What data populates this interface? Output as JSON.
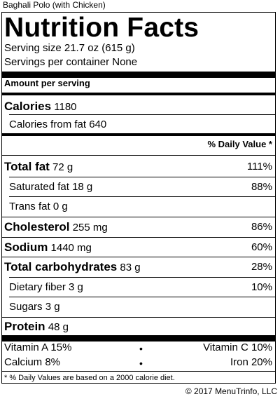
{
  "dish_name": "Baghali Polo (with Chicken)",
  "label": {
    "title": "Nutrition Facts",
    "serving_size": "Serving size 21.7 oz (615 g)",
    "servings_per_container": "Servings per container None",
    "amount_per_serving": "Amount per serving",
    "calories_label": "Calories",
    "calories_value": "1180",
    "calories_from_fat": "Calories from fat 640",
    "daily_value_header": "% Daily Value *"
  },
  "nutrients": {
    "total_fat": {
      "label": "Total fat",
      "amount": "72 g",
      "dv": "111%"
    },
    "saturated_fat": {
      "label": "Saturated fat",
      "amount": "18 g",
      "dv": "88%"
    },
    "trans_fat": {
      "label": "Trans fat",
      "amount": "0 g"
    },
    "cholesterol": {
      "label": "Cholesterol",
      "amount": "255 mg",
      "dv": "86%"
    },
    "sodium": {
      "label": "Sodium",
      "amount": "1440 mg",
      "dv": "60%"
    },
    "total_carbohydrates": {
      "label": "Total carbohydrates",
      "amount": "83 g",
      "dv": "28%"
    },
    "dietary_fiber": {
      "label": "Dietary fiber",
      "amount": "3 g",
      "dv": "10%"
    },
    "sugars": {
      "label": "Sugars",
      "amount": "3 g"
    },
    "protein": {
      "label": "Protein",
      "amount": "48 g"
    }
  },
  "vitamins": {
    "vitamin_a": "Vitamin A 15%",
    "vitamin_c": "Vitamin C 10%",
    "calcium": "Calcium 8%",
    "iron": "Iron 20%",
    "separator": "•"
  },
  "footnote": "* % Daily Values are based on a 2000 calorie diet.",
  "copyright": "© 2017 MenuTrinfo, LLC"
}
